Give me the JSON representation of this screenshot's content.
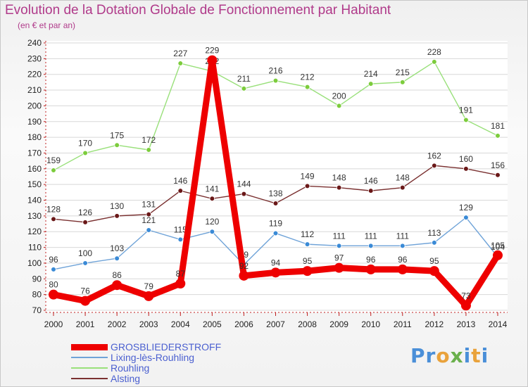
{
  "title": "Evolution de la Dotation Globale de Fonctionnement par Habitant",
  "subtitle": "(en € et par an)",
  "logo_text": "Proxiti",
  "chart_data": {
    "type": "line",
    "title": "Evolution de la Dotation Globale de Fonctionnement par Habitant",
    "subtitle": "(en € et par an)",
    "xlabel": "",
    "ylabel": "",
    "ylim": [
      70,
      240
    ],
    "yticks": [
      70,
      80,
      90,
      100,
      110,
      120,
      130,
      140,
      150,
      160,
      170,
      180,
      190,
      200,
      210,
      220,
      230,
      240
    ],
    "x": [
      2000,
      2001,
      2002,
      2003,
      2004,
      2005,
      2006,
      2007,
      2008,
      2009,
      2010,
      2011,
      2012,
      2013,
      2014
    ],
    "legend_position": "bottom-left",
    "series": [
      {
        "name": "GROSBLIEDERSTROFF",
        "color": "#ee0000",
        "marker": "#ee0000",
        "width": "thick",
        "values": [
          80,
          76,
          86,
          79,
          87,
          229,
          92,
          94,
          95,
          97,
          96,
          96,
          95,
          73,
          105
        ]
      },
      {
        "name": "Lixing-lès-Rouhling",
        "color": "#6fa3d8",
        "marker": "#3a8ad6",
        "width": "thin",
        "values": [
          96,
          100,
          103,
          121,
          115,
          120,
          99,
          119,
          112,
          111,
          111,
          111,
          113,
          129,
          104
        ]
      },
      {
        "name": "Rouhling",
        "color": "#99e07a",
        "marker": "#7ccc3c",
        "width": "thin",
        "values": [
          159,
          170,
          175,
          172,
          227,
          222,
          211,
          216,
          212,
          200,
          214,
          215,
          228,
          191,
          181
        ]
      },
      {
        "name": "Alsting",
        "color": "#7a3030",
        "marker": "#6a1818",
        "width": "thin",
        "values": [
          128,
          126,
          130,
          131,
          146,
          141,
          144,
          138,
          149,
          148,
          146,
          148,
          162,
          160,
          156
        ]
      }
    ]
  },
  "colors": {
    "title": "#b03a8a",
    "legend_text": "#4a5fd0",
    "logo_p": "#4a8fd8",
    "logo_o": "#e9a23b",
    "logo_x": "#6ab04c",
    "axis_grid": "#d0d0d0"
  }
}
